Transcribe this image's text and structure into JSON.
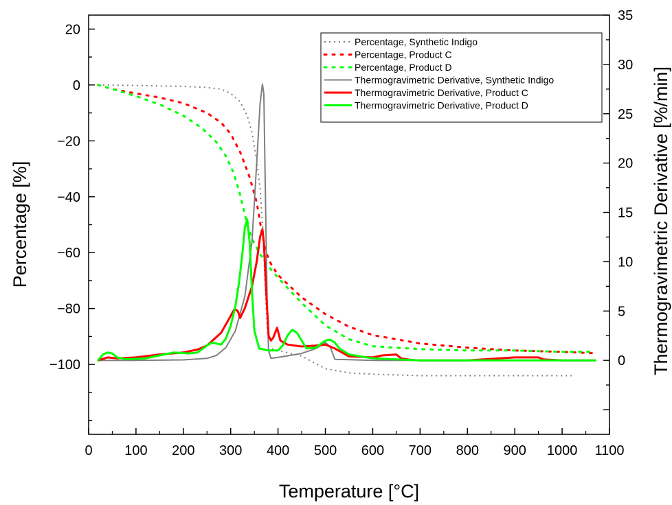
{
  "chart_data": {
    "type": "line",
    "xlabel": "Temperature [°C]",
    "ylabel_left": "Percentage [%]",
    "ylabel_right": "Thermogravimetric Derivative [%/min]",
    "xlim": [
      0,
      1100
    ],
    "ylim_left": [
      -125,
      25
    ],
    "ylim_right": [
      -7.5,
      35
    ],
    "x_ticks": [
      0,
      100,
      200,
      300,
      400,
      500,
      600,
      700,
      800,
      900,
      1000,
      1100
    ],
    "y_left_ticks": [
      20,
      0,
      -20,
      -40,
      -60,
      -80,
      -100
    ],
    "y_right_ticks": [
      35,
      30,
      25,
      20,
      15,
      10,
      5,
      0
    ],
    "grid": false,
    "legend_position": "top-right",
    "colors": {
      "gray": "#7f7f7f",
      "red": "#ff0000",
      "green": "#00ff00"
    },
    "series": [
      {
        "name": "Percentage, Synthetic Indigo",
        "axis": "left",
        "style": "dotted",
        "color": "#7f7f7f",
        "x": [
          20,
          100,
          200,
          250,
          280,
          300,
          320,
          335,
          345,
          355,
          362,
          368,
          372,
          376,
          380,
          400,
          450,
          500,
          550,
          600,
          700,
          800,
          900,
          1000,
          1020
        ],
        "y": [
          0,
          -0.2,
          -0.5,
          -0.9,
          -1.5,
          -3,
          -6,
          -11,
          -17,
          -27,
          -37,
          -52,
          -68,
          -84,
          -94,
          -95,
          -97,
          -101.5,
          -103,
          -103.5,
          -104,
          -104,
          -104,
          -104,
          -104
        ]
      },
      {
        "name": "Percentage, Product C",
        "axis": "left",
        "style": "dotted",
        "color": "#ff0000",
        "x": [
          20,
          50,
          100,
          150,
          200,
          250,
          280,
          300,
          320,
          340,
          355,
          365,
          375,
          385,
          400,
          450,
          500,
          550,
          600,
          700,
          800,
          900,
          1000,
          1070
        ],
        "y": [
          0,
          -1.5,
          -3,
          -4.5,
          -6.5,
          -10,
          -13.5,
          -17.5,
          -24,
          -33,
          -42,
          -52,
          -60,
          -64,
          -68,
          -76,
          -82,
          -86.5,
          -89.5,
          -92.5,
          -94,
          -95,
          -95.5,
          -96
        ]
      },
      {
        "name": "Percentage, Product D",
        "axis": "left",
        "style": "dotted",
        "color": "#00ff00",
        "x": [
          20,
          50,
          100,
          150,
          200,
          240,
          270,
          290,
          305,
          318,
          328,
          335,
          345,
          360,
          380,
          400,
          450,
          500,
          550,
          600,
          700,
          800,
          900,
          1000,
          1070
        ],
        "y": [
          0,
          -1.5,
          -4,
          -7,
          -11,
          -15.5,
          -20.5,
          -25.5,
          -31,
          -38,
          -45,
          -50,
          -55,
          -60,
          -65,
          -69,
          -78,
          -86,
          -91,
          -93.5,
          -94.5,
          -95,
          -95,
          -95.5,
          -95.5
        ]
      },
      {
        "name": "Thermogravimetric Derivative, Synthetic Indigo",
        "axis": "right",
        "style": "solid",
        "color": "#7f7f7f",
        "x": [
          20,
          100,
          200,
          250,
          270,
          290,
          310,
          330,
          345,
          355,
          362,
          367,
          370,
          373,
          377,
          380,
          385,
          400,
          450,
          480,
          500,
          510,
          520,
          600,
          700,
          800,
          900,
          1000,
          1070
        ],
        "y": [
          0,
          0,
          0.05,
          0.2,
          0.5,
          1.3,
          3,
          6.5,
          12,
          20,
          26,
          28,
          27,
          18,
          6,
          1,
          0.2,
          0.3,
          0.7,
          1.2,
          1.8,
          1.4,
          0.1,
          0,
          0,
          0,
          0,
          0,
          0
        ]
      },
      {
        "name": "Thermogravimetric Derivative, Product C",
        "axis": "right",
        "style": "solid",
        "color": "#ff0000",
        "x": [
          20,
          40,
          60,
          100,
          150,
          200,
          230,
          250,
          280,
          300,
          308,
          315,
          320,
          330,
          345,
          355,
          362,
          367,
          370,
          375,
          380,
          385,
          390,
          398,
          405,
          420,
          450,
          480,
          500,
          520,
          550,
          600,
          620,
          650,
          660,
          680,
          700,
          800,
          900,
          950,
          960,
          1000,
          1070
        ],
        "y": [
          0,
          0.3,
          0.2,
          0.3,
          0.6,
          0.8,
          1.1,
          1.5,
          2.8,
          4.5,
          5.2,
          5,
          4.3,
          5.3,
          7.5,
          10,
          12.5,
          13.3,
          12,
          7,
          2.5,
          2,
          2.3,
          3.3,
          2,
          1.6,
          1.4,
          1.5,
          1.6,
          1.2,
          0.4,
          0.3,
          0.5,
          0.6,
          0.2,
          0.05,
          0,
          0,
          0.3,
          0.3,
          0.1,
          0,
          0
        ]
      },
      {
        "name": "Thermogravimetric Derivative, Product D",
        "axis": "right",
        "style": "solid",
        "color": "#00ff00",
        "x": [
          20,
          30,
          40,
          50,
          60,
          80,
          120,
          150,
          180,
          210,
          230,
          250,
          260,
          270,
          280,
          290,
          300,
          310,
          318,
          325,
          330,
          335,
          340,
          345,
          350,
          360,
          380,
          400,
          410,
          420,
          430,
          440,
          450,
          460,
          480,
          500,
          510,
          520,
          530,
          550,
          600,
          700,
          800,
          900,
          1000,
          1070
        ],
        "y": [
          0,
          0.6,
          0.8,
          0.7,
          0.3,
          0.1,
          0.2,
          0.5,
          0.8,
          0.7,
          0.8,
          1.5,
          1.8,
          1.7,
          1.6,
          2.2,
          3.5,
          5.5,
          8,
          11,
          13.5,
          14.3,
          12,
          7,
          3,
          1.2,
          1,
          1,
          1.5,
          2.5,
          3.1,
          2.8,
          2,
          1.2,
          1.3,
          2,
          2.1,
          1.8,
          1.2,
          0.6,
          0.2,
          0,
          0,
          0,
          0,
          0
        ]
      }
    ]
  }
}
